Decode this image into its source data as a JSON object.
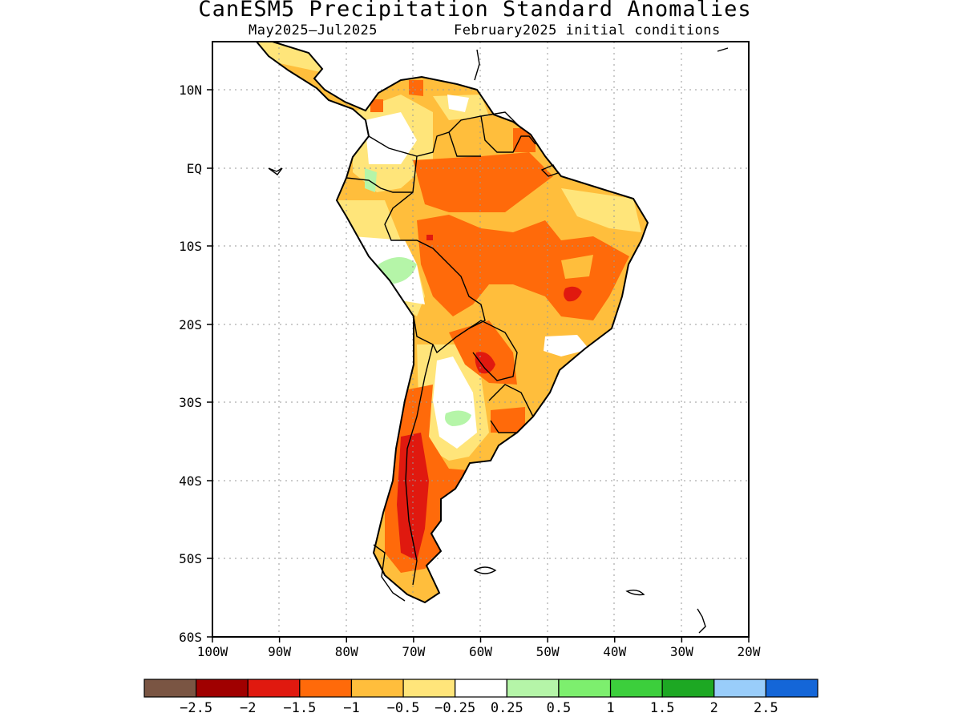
{
  "title": "CanESM5 Precipitation Standard Anomalies",
  "subtitle_left": "May2025–Jul2025",
  "subtitle_right": "February2025 initial conditions",
  "axes": {
    "lat_labels": [
      "10N",
      "EQ",
      "10S",
      "20S",
      "30S",
      "40S",
      "50S",
      "60S"
    ],
    "lon_labels": [
      "100W",
      "90W",
      "80W",
      "70W",
      "60W",
      "50W",
      "40W",
      "30W",
      "20W"
    ]
  },
  "colorbar": {
    "colors": [
      "#7a5543",
      "#a00000",
      "#e0190f",
      "#ff6a0a",
      "#ffbe3c",
      "#ffe57a",
      "#ffffff",
      "#b5f5a8",
      "#7def6e",
      "#3ccf3c",
      "#1da823",
      "#99cdfa",
      "#1466d8"
    ],
    "labels": [
      "−2.5",
      "−2",
      "−1.5",
      "−1",
      "−0.5",
      "−0.25",
      "0.25",
      "0.5",
      "1",
      "1.5",
      "2",
      "2.5"
    ]
  }
}
